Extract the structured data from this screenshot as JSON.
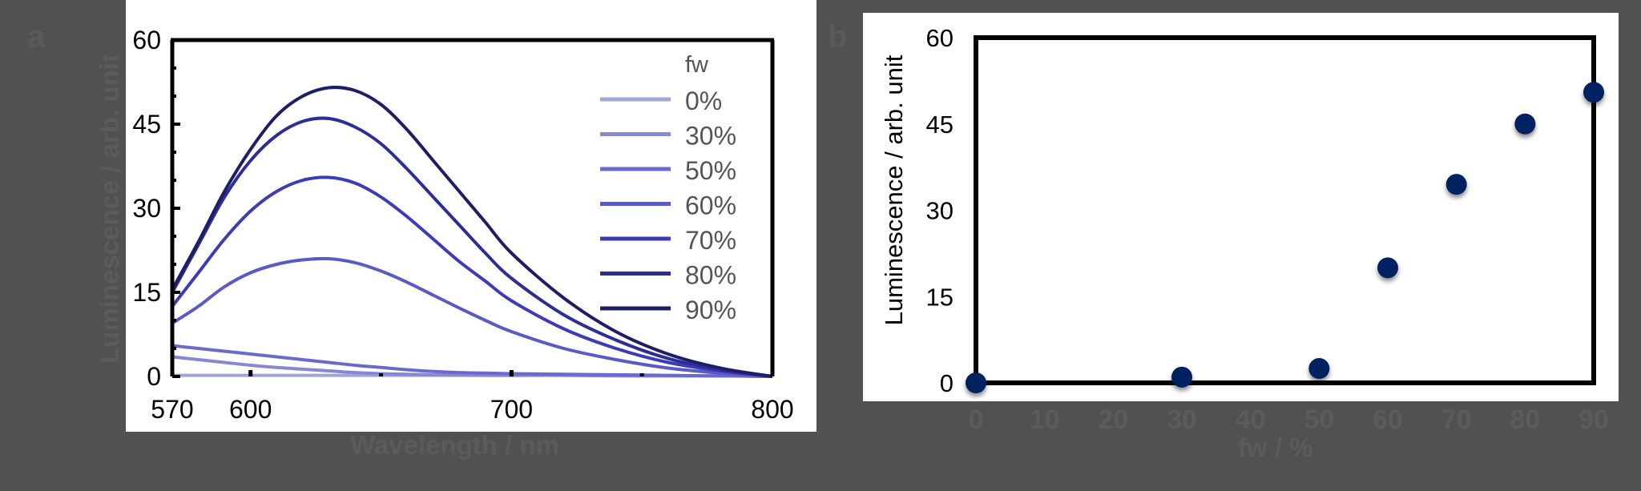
{
  "panel_a": {
    "letter": "a",
    "ylabel": "Luminescence / arb. unit",
    "xlabel": "Wavelength / nm",
    "yticks": [
      "0",
      "15",
      "30",
      "45",
      "60"
    ],
    "xticks": [
      "570",
      "600",
      "700",
      "800"
    ],
    "legend_title": "fw",
    "legend": [
      "0%",
      "30%",
      "50%",
      "60%",
      "70%",
      "80%",
      "90%"
    ]
  },
  "panel_b": {
    "letter": "b",
    "ylabel": "Luminescence / arb. unit",
    "xlabel": "fw / %",
    "yticks": [
      "0",
      "15",
      "30",
      "45",
      "60"
    ],
    "xticks": [
      "0",
      "10",
      "20",
      "30",
      "40",
      "50",
      "60",
      "70",
      "80",
      "90"
    ]
  },
  "colors": {
    "background": "#515151",
    "fw_0": "#a3a3dc",
    "fw_30": "#8787d5",
    "fw_50": "#6a6acc",
    "fw_60": "#5a5ac6",
    "fw_70": "#3c3cb8",
    "fw_80": "#2d2d98",
    "fw_90": "#1e1e66",
    "marker": "#002060"
  },
  "chart_data": [
    {
      "type": "line",
      "title": "",
      "xlabel": "Wavelength / nm",
      "ylabel": "Luminescence / arb. unit",
      "xlim": [
        570,
        800
      ],
      "ylim": [
        0,
        60
      ],
      "grid": false,
      "legend_title": "fw",
      "legend_position": "upper right",
      "x": [
        570,
        580,
        590,
        600,
        610,
        620,
        630,
        640,
        650,
        660,
        670,
        680,
        690,
        700,
        720,
        740,
        760,
        780,
        800
      ],
      "series": [
        {
          "name": "0%",
          "values": [
            0.2,
            0.2,
            0.2,
            0.2,
            0.2,
            0.2,
            0.2,
            0.2,
            0.2,
            0.2,
            0.2,
            0.2,
            0.2,
            0.2,
            0.2,
            0.2,
            0.1,
            0.1,
            0.0
          ]
        },
        {
          "name": "30%",
          "values": [
            3.5,
            3.0,
            2.5,
            2.0,
            1.6,
            1.3,
            1.0,
            0.7,
            0.5,
            0.4,
            0.3,
            0.3,
            0.2,
            0.2,
            0.2,
            0.1,
            0.1,
            0.1,
            0.0
          ]
        },
        {
          "name": "50%",
          "values": [
            5.5,
            5.0,
            4.5,
            4.0,
            3.5,
            3.0,
            2.5,
            2.0,
            1.6,
            1.2,
            0.9,
            0.7,
            0.6,
            0.5,
            0.4,
            0.3,
            0.2,
            0.1,
            0.0
          ]
        },
        {
          "name": "60%",
          "values": [
            9.5,
            12.5,
            16.0,
            18.5,
            20.0,
            20.8,
            21.0,
            20.3,
            18.8,
            16.8,
            14.5,
            12.2,
            10.0,
            8.0,
            5.0,
            3.0,
            1.5,
            0.6,
            0.0
          ]
        },
        {
          "name": "70%",
          "values": [
            12.5,
            18.5,
            24.5,
            29.5,
            33.0,
            35.0,
            35.5,
            34.5,
            32.0,
            28.5,
            24.5,
            20.5,
            17.0,
            13.5,
            8.5,
            5.0,
            2.5,
            1.0,
            0.0
          ]
        },
        {
          "name": "80%",
          "values": [
            15.0,
            23.5,
            32.0,
            38.5,
            43.0,
            45.5,
            46.0,
            44.5,
            41.5,
            37.0,
            32.0,
            27.0,
            22.0,
            17.5,
            11.0,
            6.5,
            3.2,
            1.2,
            0.0
          ]
        },
        {
          "name": "90%",
          "values": [
            15.5,
            24.0,
            33.0,
            40.5,
            46.5,
            50.0,
            51.5,
            51.0,
            48.5,
            44.0,
            38.5,
            33.0,
            27.5,
            22.0,
            14.0,
            8.0,
            4.0,
            1.5,
            0.0
          ]
        }
      ]
    },
    {
      "type": "scatter",
      "title": "",
      "xlabel": "fw / %",
      "ylabel": "Luminescence / arb. unit",
      "xlim": [
        0,
        90
      ],
      "ylim": [
        0,
        60
      ],
      "grid": false,
      "x": [
        0,
        30,
        50,
        60,
        70,
        80,
        90
      ],
      "values": [
        0,
        1.0,
        2.5,
        20.0,
        34.5,
        45.0,
        50.5
      ]
    }
  ]
}
